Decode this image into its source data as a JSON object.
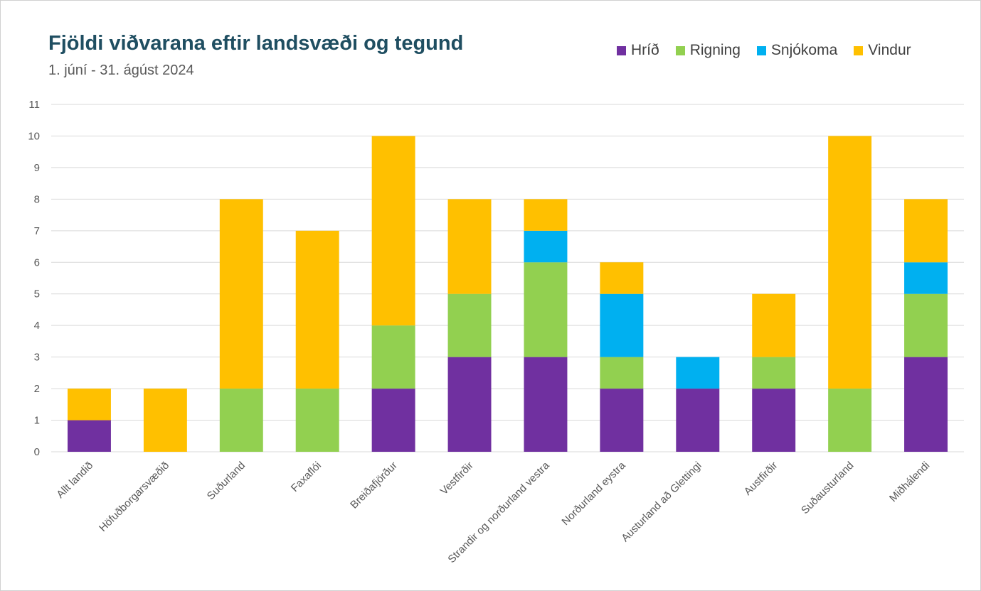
{
  "chart_data": {
    "type": "bar",
    "stacked": true,
    "title": "Fjöldi viðvarana eftir landsvæði og tegund",
    "subtitle": "1. júní - 31. ágúst 2024",
    "xlabel": "",
    "ylabel": "",
    "ylim": [
      0,
      11
    ],
    "yticks": [
      0,
      1,
      2,
      3,
      4,
      5,
      6,
      7,
      8,
      9,
      10,
      11
    ],
    "grid": true,
    "legend_position": "top-right",
    "categories": [
      "Allt landið",
      "Höfuðborgarsvæðið",
      "Suðurland",
      "Faxaflói",
      "Breiðafjörður",
      "Vestfirðir",
      "Strandir og norðurland vestra",
      "Norðurland eystra",
      "Austurland að Glettingi",
      "Austfirðir",
      "Suðausturland",
      "Miðhálendi"
    ],
    "series": [
      {
        "name": "Hríð",
        "color": "#7030a0",
        "values": [
          1,
          0,
          0,
          0,
          2,
          3,
          3,
          2,
          2,
          2,
          0,
          3
        ]
      },
      {
        "name": "Rigning",
        "color": "#92d050",
        "values": [
          0,
          0,
          2,
          2,
          2,
          2,
          3,
          1,
          0,
          1,
          2,
          2
        ]
      },
      {
        "name": "Snjókoma",
        "color": "#00b0f0",
        "values": [
          0,
          0,
          0,
          0,
          0,
          0,
          1,
          2,
          1,
          0,
          0,
          1
        ]
      },
      {
        "name": "Vindur",
        "color": "#ffc000",
        "values": [
          1,
          2,
          6,
          5,
          6,
          3,
          1,
          1,
          0,
          2,
          8,
          2
        ]
      }
    ]
  }
}
